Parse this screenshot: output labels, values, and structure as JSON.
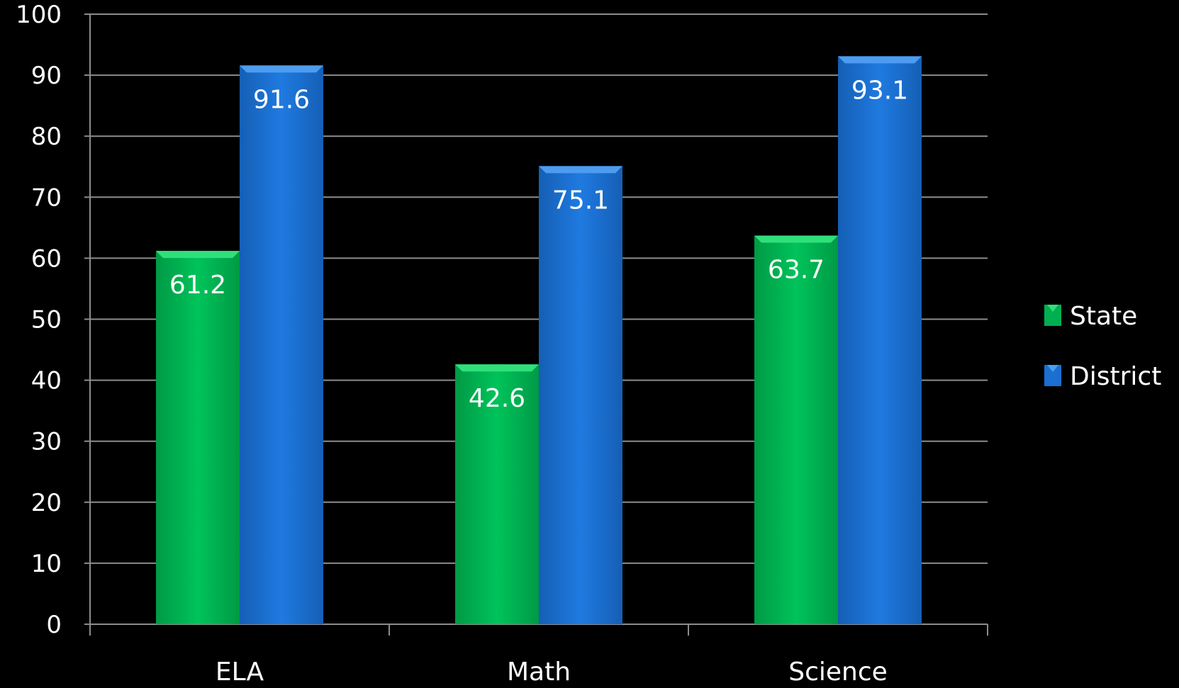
{
  "chart_data": {
    "type": "bar",
    "categories": [
      "ELA",
      "Math",
      "Science"
    ],
    "series": [
      {
        "name": "State",
        "values": [
          61.2,
          42.6,
          63.7
        ]
      },
      {
        "name": "District",
        "values": [
          91.6,
          75.1,
          93.1
        ]
      }
    ],
    "data_labels": [
      [
        "61.2",
        "42.6",
        "63.7"
      ],
      [
        "91.6",
        "75.1",
        "93.1"
      ]
    ],
    "y_ticks": [
      "0",
      "10",
      "20",
      "30",
      "40",
      "50",
      "60",
      "70",
      "80",
      "90",
      "100"
    ],
    "ylim": [
      0,
      100
    ],
    "grid": true,
    "legend_position": "right",
    "colors": {
      "background": "#000000",
      "state": "#00b050",
      "state_top": "#2fe07a",
      "district": "#1a6fd1",
      "district_top": "#4d9cf0",
      "gridline": "#8c8c8c",
      "text": "#ffffff"
    }
  }
}
